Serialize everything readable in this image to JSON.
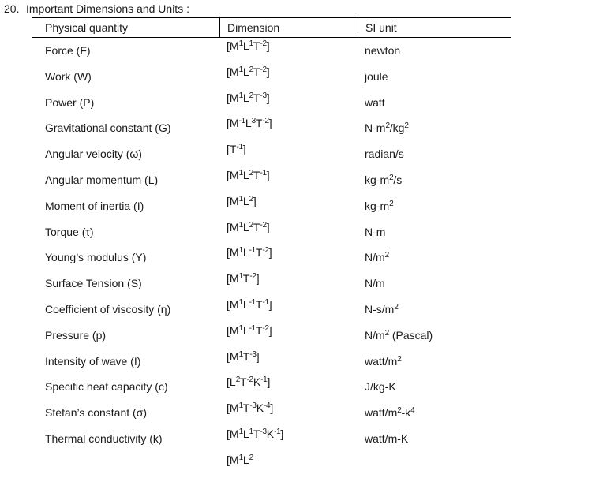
{
  "page": {
    "item_number": "20.",
    "title": "Important Dimensions and Units :"
  },
  "table": {
    "columns": [
      "Physical quantity",
      "Dimension",
      "SI unit"
    ],
    "rows": [
      {
        "quantity": "Force (F)",
        "dimension": "[M^1L^1T^-2]",
        "si_unit": "newton"
      },
      {
        "quantity": "Work (W)",
        "dimension": "[M^1L^2T^-2]",
        "si_unit": "joule"
      },
      {
        "quantity": "Power (P)",
        "dimension": "[M^1L^2T^-3]",
        "si_unit": "watt"
      },
      {
        "quantity": "Gravitational constant (G)",
        "dimension": "[M^-1L^3T^-2]",
        "si_unit": "N-m^2/kg^2"
      },
      {
        "quantity": "Angular velocity (ω)",
        "dimension": "[T^-1]",
        "si_unit": "radian/s"
      },
      {
        "quantity": "Angular momentum (L)",
        "dimension": "[M^1L^2T^-1]",
        "si_unit": "kg-m^2/s"
      },
      {
        "quantity": "Moment of inertia (I)",
        "dimension": "[M^1L^2]",
        "si_unit": "kg-m^2"
      },
      {
        "quantity": "Torque (τ)",
        "dimension": "[M^1L^2T^-2]",
        "si_unit": "N-m"
      },
      {
        "quantity": "Young’s modulus (Y)",
        "dimension": "[M^1L^-1T^-2]",
        "si_unit": "N/m^2"
      },
      {
        "quantity": "Surface Tension (S)",
        "dimension": "[M^1T^-2]",
        "si_unit": "N/m"
      },
      {
        "quantity": "Coefficient of viscosity (η)",
        "dimension": "[M^1L^-1T^-1]",
        "si_unit": "N-s/m^2"
      },
      {
        "quantity": "Pressure (p)",
        "dimension": "[M^1L^-1T^-2]",
        "si_unit": "N/m^2 (Pascal)"
      },
      {
        "quantity": "Intensity of wave (I)",
        "dimension": "[M^1T^-3]",
        "si_unit": "watt/m^2"
      },
      {
        "quantity": "Specific heat capacity (c)",
        "dimension": "[L^2T^-2K^-1]",
        "si_unit": "J/kg-K"
      },
      {
        "quantity": "Stefan’s constant (σ)",
        "dimension": "[M^1T^-3K^-4]",
        "si_unit": "watt/m^2-k^4"
      },
      {
        "quantity": "Thermal conductivity (k)",
        "dimension": "[M^1L^1T^-3K^-1]",
        "si_unit": "watt/m-K"
      },
      {
        "quantity": "",
        "dimension": "[M^1L^2",
        "si_unit": ""
      }
    ]
  },
  "colors": {
    "background": "#ffffff",
    "text": "#1a1a1a",
    "rule": "#000000"
  }
}
